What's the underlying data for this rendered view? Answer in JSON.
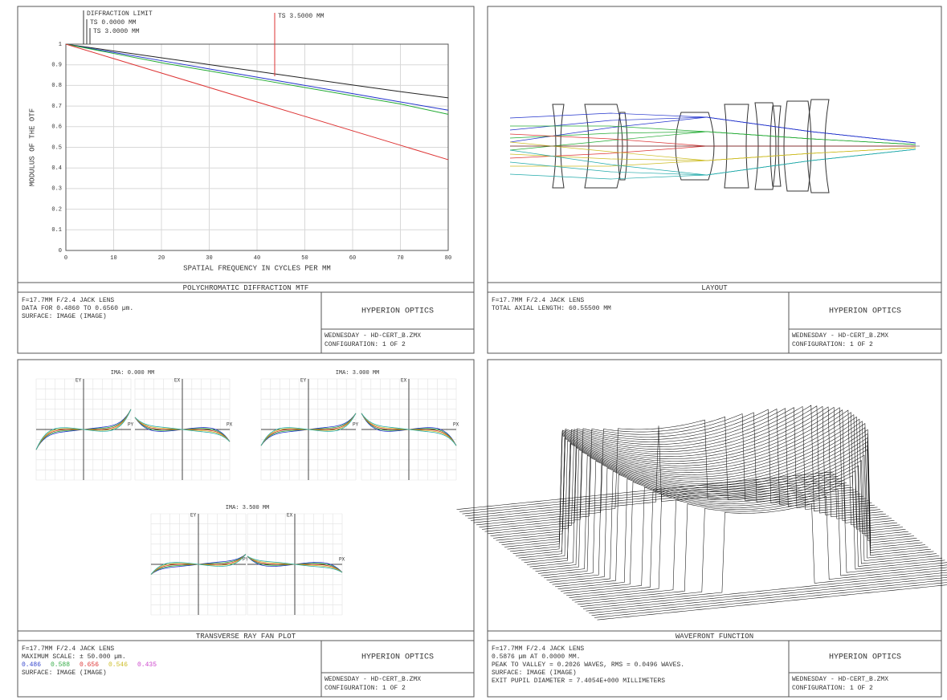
{
  "chart_data": {
    "type": "line",
    "x_label": "SPATIAL FREQUENCY IN CYCLES PER MM",
    "y_label": "MODULUS OF THE OTF",
    "x": [
      0,
      10,
      20,
      30,
      40,
      50,
      60,
      70,
      80
    ],
    "series": [
      {
        "name": "DIFFRACTION LIMIT",
        "color": "#222222",
        "values": [
          1.0,
          0.967,
          0.934,
          0.901,
          0.868,
          0.835,
          0.802,
          0.77,
          0.74
        ]
      },
      {
        "name": "TS 0.0000 MM",
        "color": "#2233cc",
        "values": [
          1.0,
          0.96,
          0.92,
          0.88,
          0.84,
          0.8,
          0.76,
          0.72,
          0.68
        ]
      },
      {
        "name": "TS 3.0000 MM",
        "color": "#22aa33",
        "values": [
          1.0,
          0.955,
          0.91,
          0.87,
          0.83,
          0.79,
          0.75,
          0.71,
          0.66
        ]
      },
      {
        "name": "TS 3.5000 MM",
        "color": "#dd3333",
        "values": [
          1.0,
          0.93,
          0.86,
          0.79,
          0.72,
          0.65,
          0.58,
          0.51,
          0.44
        ]
      }
    ],
    "xlim": [
      0,
      80
    ],
    "xticks": [
      0,
      10,
      20,
      30,
      40,
      50,
      60,
      70,
      80
    ],
    "ylim": [
      0,
      1
    ],
    "yticks": [
      0,
      0.1,
      0.2,
      0.3,
      0.4,
      0.5,
      0.6,
      0.7,
      0.8,
      0.9,
      1.0
    ],
    "grid": true
  },
  "panels": [
    {
      "title": "POLYCHROMATIC DIFFRACTION MTF",
      "info": [
        "F=17.7MM F/2.4 JACK LENS",
        "DATA FOR 0.4860 TO 0.6560 µm.",
        "SURFACE: IMAGE (IMAGE)"
      ],
      "company": "HYPERION OPTICS",
      "footer": [
        "WEDNESDAY - HD-CERT_B.ZMX",
        "CONFIGURATION: 1 OF 2"
      ]
    },
    {
      "title": "LAYOUT",
      "info": [
        "F=17.7MM F/2.4 JACK LENS",
        "TOTAL AXIAL LENGTH:  60.55500 MM"
      ],
      "company": "HYPERION OPTICS",
      "footer": [
        "WEDNESDAY - HD-CERT_B.ZMX",
        "CONFIGURATION: 1 OF 2"
      ]
    },
    {
      "title": "TRANSVERSE RAY FAN PLOT",
      "info": [
        "F=17.7MM F/2.4 JACK LENS",
        "MAXIMUM SCALE: ± 50.000 µm.",
        "SURFACE: IMAGE (IMAGE)"
      ],
      "wavelengths": [
        {
          "label": "0.486",
          "color": "#3344cc"
        },
        {
          "label": "0.588",
          "color": "#33aa44"
        },
        {
          "label": "0.656",
          "color": "#dd3333"
        },
        {
          "label": "0.546",
          "color": "#ccbb22"
        },
        {
          "label": "0.435",
          "color": "#cc44cc"
        }
      ],
      "company": "HYPERION OPTICS",
      "footer": [
        "WEDNESDAY - HD-CERT_B.ZMX",
        "CONFIGURATION: 1 OF 2"
      ]
    },
    {
      "title": "WAVEFRONT FUNCTION",
      "info": [
        "F=17.7MM F/2.4 JACK LENS",
        "0.5876 µm AT 0.0000 MM.",
        "PEAK TO VALLEY = 0.2026 WAVES, RMS = 0.0496 WAVES.",
        "SURFACE: IMAGE (IMAGE)",
        "EXIT PUPIL DIAMETER = 7.4054E+000 MILLIMETERS"
      ],
      "company": "HYPERION OPTICS",
      "footer": [
        "WEDNESDAY - HD-CERT_B.ZMX",
        "CONFIGURATION: 1 OF 2"
      ]
    }
  ],
  "ray_fan": {
    "fields": [
      "IMA: 0.000 MM",
      "IMA: 3.000 MM",
      "IMA: 3.500 MM"
    ],
    "axes": [
      "EY",
      "PY",
      "EX",
      "PX"
    ]
  }
}
